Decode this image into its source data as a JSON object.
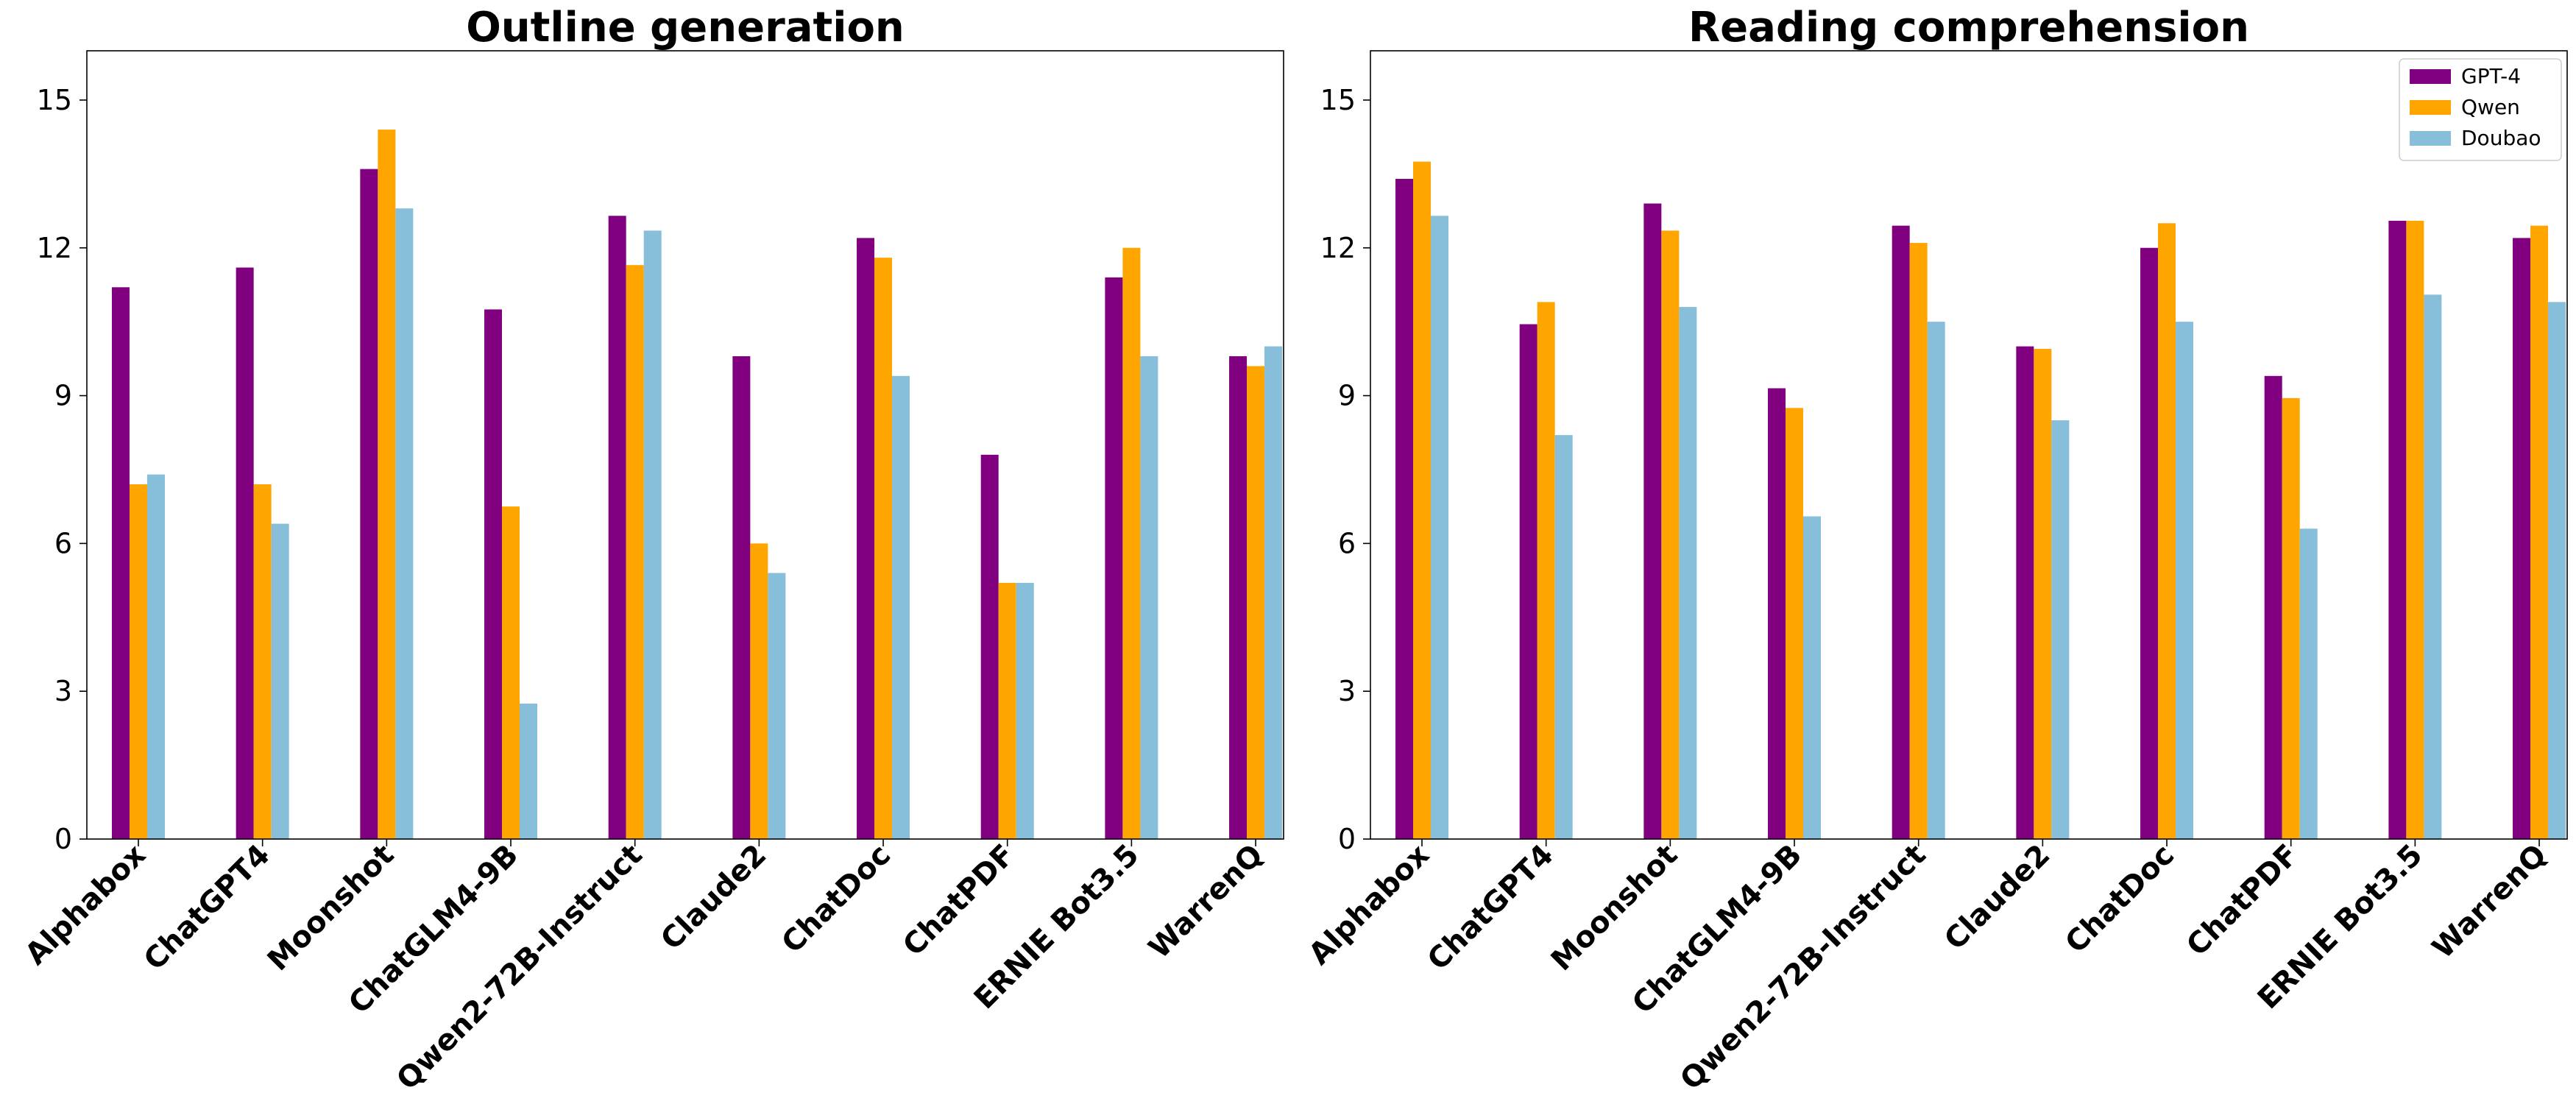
{
  "chart_data": [
    {
      "type": "bar",
      "title": "Outline generation",
      "xlabel": "",
      "ylabel": "",
      "ylim": [
        0,
        16
      ],
      "yticks": [
        0,
        3,
        6,
        9,
        12,
        15
      ],
      "grid": false,
      "categories": [
        "Alphabox",
        "ChatGPT4",
        "Moonshot",
        "ChatGLM4-9B",
        "Qwen2-72B-Instruct",
        "Claude2",
        "ChatDoc",
        "ChatPDF",
        "ERNIE Bot3.5",
        "WarrenQ"
      ],
      "series": [
        {
          "name": "GPT-4",
          "color": "#800080",
          "values": [
            11.2,
            11.6,
            13.6,
            10.75,
            12.65,
            9.8,
            12.2,
            7.8,
            11.4,
            9.8
          ]
        },
        {
          "name": "Qwen",
          "color": "#FFA500",
          "values": [
            7.2,
            7.2,
            14.4,
            6.75,
            11.65,
            6.0,
            11.8,
            5.2,
            12.0,
            9.6
          ]
        },
        {
          "name": "Doubao",
          "color": "#87BEDA",
          "values": [
            7.4,
            6.4,
            12.8,
            2.75,
            12.35,
            5.4,
            9.4,
            5.2,
            9.8,
            10.0
          ]
        }
      ]
    },
    {
      "type": "bar",
      "title": "Reading comprehension",
      "xlabel": "",
      "ylabel": "",
      "ylim": [
        0,
        16
      ],
      "yticks": [
        0,
        3,
        6,
        9,
        12,
        15
      ],
      "grid": false,
      "legend": "top-right",
      "categories": [
        "Alphabox",
        "ChatGPT4",
        "Moonshot",
        "ChatGLM4-9B",
        "Qwen2-72B-Instruct",
        "Claude2",
        "ChatDoc",
        "ChatPDF",
        "ERNIE Bot3.5",
        "WarrenQ"
      ],
      "series": [
        {
          "name": "GPT-4",
          "color": "#800080",
          "values": [
            13.4,
            10.45,
            12.9,
            9.15,
            12.45,
            10.0,
            12.0,
            9.4,
            12.55,
            12.2
          ]
        },
        {
          "name": "Qwen",
          "color": "#FFA500",
          "values": [
            13.75,
            10.9,
            12.35,
            8.75,
            12.1,
            9.95,
            12.5,
            8.95,
            12.55,
            12.45
          ]
        },
        {
          "name": "Doubao",
          "color": "#87BEDA",
          "values": [
            12.65,
            8.2,
            10.8,
            6.55,
            10.5,
            8.5,
            10.5,
            6.3,
            11.05,
            10.9
          ]
        }
      ]
    }
  ]
}
